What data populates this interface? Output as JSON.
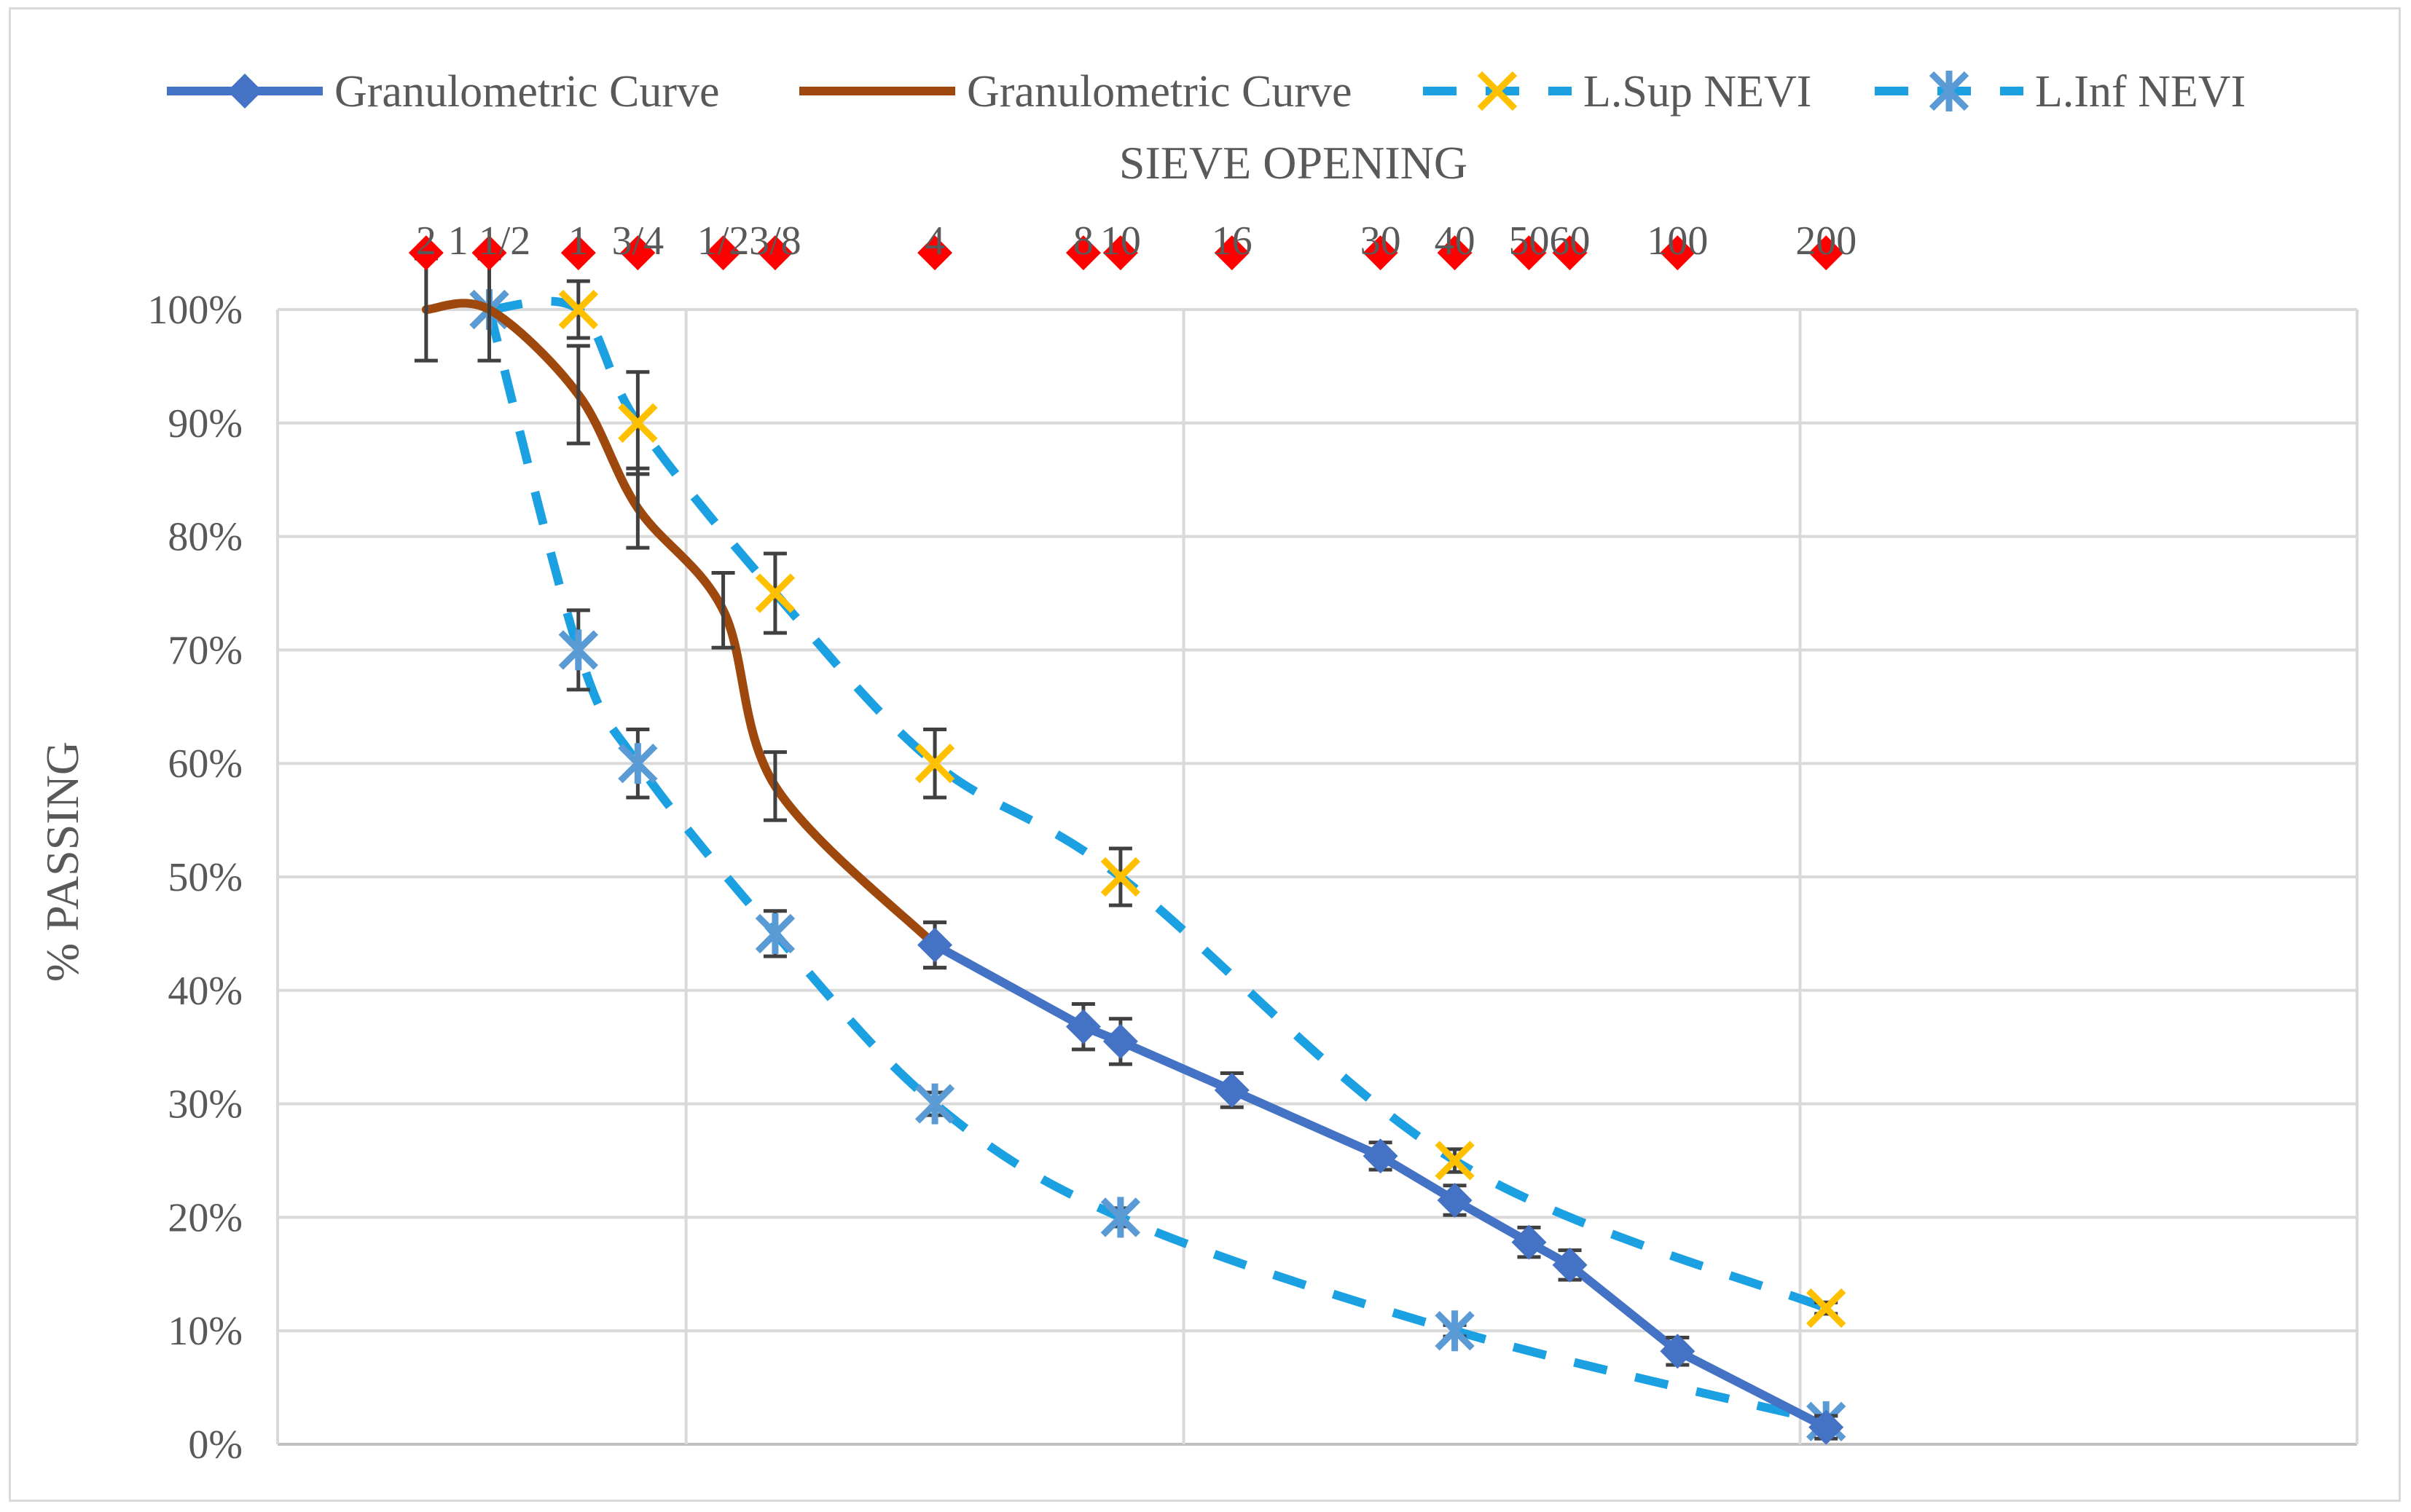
{
  "chart_data": {
    "type": "line",
    "title": "",
    "x_axis_title": "SIEVE OPENING",
    "ylabel": "% PASSING",
    "ylim": [
      0,
      100
    ],
    "y_ticks": [
      0,
      10,
      20,
      30,
      40,
      50,
      60,
      70,
      80,
      90,
      100
    ],
    "y_tick_suffix": "%",
    "grid": true,
    "legend_position": "top",
    "x_index_range": [
      -2,
      26
    ],
    "vertical_grid_at_index": [
      3.5,
      10.2,
      18.5
    ],
    "sieves": [
      {
        "label": "2",
        "x": 0
      },
      {
        "label": "1 1/2",
        "x": 0.85
      },
      {
        "label": "1",
        "x": 2.05
      },
      {
        "label": "3/4",
        "x": 2.85
      },
      {
        "label": "1/2",
        "x": 4.0
      },
      {
        "label": "3/8",
        "x": 4.7
      },
      {
        "label": "4",
        "x": 6.85
      },
      {
        "label": "8",
        "x": 8.85
      },
      {
        "label": "10",
        "x": 9.35
      },
      {
        "label": "16",
        "x": 10.85
      },
      {
        "label": "30",
        "x": 12.85
      },
      {
        "label": "40",
        "x": 13.85
      },
      {
        "label": "50",
        "x": 14.85
      },
      {
        "label": "60",
        "x": 15.4
      },
      {
        "label": "100",
        "x": 16.85
      },
      {
        "label": "200",
        "x": 18.85
      }
    ],
    "marker_color": "#ff0000",
    "series": [
      {
        "name": "Granulometric Curve",
        "style": "solid",
        "color": "#4472c4",
        "marker": "diamond",
        "smooth": false,
        "x": [
          6.85,
          8.85,
          9.35,
          10.85,
          12.85,
          13.85,
          14.85,
          15.4,
          16.85,
          18.85
        ],
        "values": [
          44,
          36.8,
          35.5,
          31.2,
          25.4,
          21.5,
          17.8,
          15.8,
          8.2,
          1.5
        ],
        "errors": [
          2,
          2,
          2,
          1.5,
          1.2,
          1.3,
          1.3,
          1.3,
          1.2,
          1.0
        ]
      },
      {
        "name": "Granulometric Curve",
        "style": "solid",
        "color": "#9e480e",
        "marker": "none",
        "smooth": true,
        "x": [
          0,
          0.85,
          2.05,
          2.85,
          4.0,
          4.7,
          6.85
        ],
        "values": [
          100,
          100,
          92.5,
          82.5,
          73.5,
          58,
          44
        ],
        "errors": [
          4.5,
          4.5,
          4.3,
          3.5,
          3.3,
          3,
          2
        ]
      },
      {
        "name": "L.Sup NEVI",
        "style": "dashed",
        "color": "#1ba1e2",
        "marker": "x",
        "marker_color": "#ffc000",
        "smooth": true,
        "x": [
          0.85,
          2.05,
          2.85,
          4.7,
          6.85,
          9.35,
          13.85,
          18.85
        ],
        "values": [
          100,
          100,
          90,
          75,
          60,
          50,
          25,
          12
        ],
        "errors": [
          0,
          2.5,
          4.5,
          3.5,
          3,
          2.5,
          1,
          0.5
        ]
      },
      {
        "name": "L.Inf NEVI",
        "style": "dashed",
        "color": "#1ba1e2",
        "marker": "star",
        "marker_color": "#5b9bd5",
        "smooth": true,
        "x": [
          0.85,
          2.05,
          2.85,
          4.7,
          6.85,
          9.35,
          13.85,
          18.85
        ],
        "values": [
          100,
          70,
          60,
          45,
          30,
          20,
          10,
          2
        ],
        "errors": [
          0,
          3.5,
          3,
          2,
          1,
          0.8,
          0.5,
          0.5
        ]
      }
    ]
  }
}
